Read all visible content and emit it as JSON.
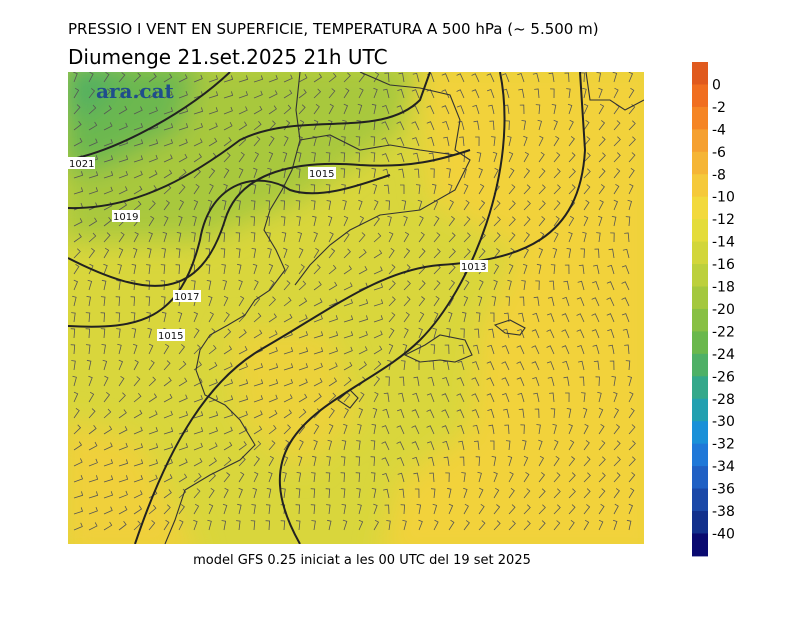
{
  "header": {
    "title": "PRESSIO I VENT EN SUPERFICIE, TEMPERATURA A 500 hPa (~ 5.500 m)",
    "subtitle": "Diumenge  21.set.2025 21h UTC"
  },
  "logo": "ara.cat",
  "isobar_labels": [
    "1021",
    "1019",
    "1017",
    "1015",
    "1015",
    "1013"
  ],
  "colorbar": {
    "ticks": [
      0,
      -2,
      -4,
      -6,
      -8,
      -10,
      -12,
      -14,
      -16,
      -18,
      -20,
      -22,
      -24,
      -26,
      -28,
      -30,
      -32,
      -34,
      -36,
      -38,
      -40
    ],
    "colors": [
      "#e05a1e",
      "#f06e20",
      "#f58525",
      "#f5a030",
      "#f5b535",
      "#f5c93a",
      "#f2d93c",
      "#e4dc3a",
      "#d2d63a",
      "#bcd03c",
      "#a4c83e",
      "#88c044",
      "#6ab84c",
      "#4eb066",
      "#34a88a",
      "#22a0b0",
      "#1a90d8",
      "#1f78d8",
      "#2060c4",
      "#1a48a8",
      "#12308c",
      "#0a0a70"
    ]
  },
  "footer": "model GFS 0.25 iniciat a les 00 UTC del 19 set 2025"
}
